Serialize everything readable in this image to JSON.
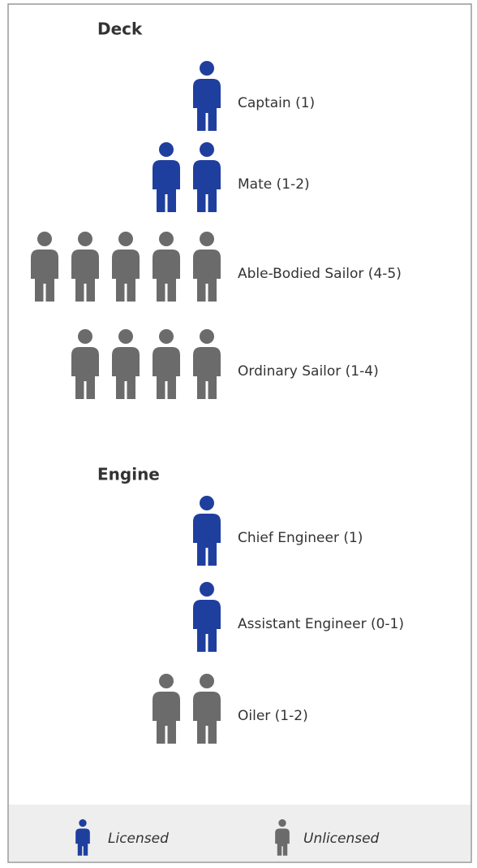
{
  "sections": [
    {
      "title": "Deck",
      "rows": [
        {
          "label": "Captain (1)",
          "icons": 1,
          "color": "#1f3f9f"
        },
        {
          "label": "Mate (1-2)",
          "icons": 2,
          "color": "#1f3f9f"
        },
        {
          "label": "Able-Bodied Sailor (4-5)",
          "icons": 5,
          "color": "#6b6b6b"
        },
        {
          "label": "Ordinary Sailor (1-4)",
          "icons": 4,
          "color": "#6b6b6b"
        }
      ]
    },
    {
      "title": "Engine",
      "rows": [
        {
          "label": "Chief Engineer (1)",
          "icons": 1,
          "color": "#1f3f9f"
        },
        {
          "label": "Assistant Engineer (0-1)",
          "icons": 1,
          "color": "#1f3f9f"
        },
        {
          "label": "Oiler (1-2)",
          "icons": 2,
          "color": "#6b6b6b"
        }
      ]
    }
  ],
  "legend": [
    {
      "label": "Licensed",
      "color": "#1f3f9f"
    },
    {
      "label": "Unlicensed",
      "color": "#6b6b6b"
    }
  ]
}
